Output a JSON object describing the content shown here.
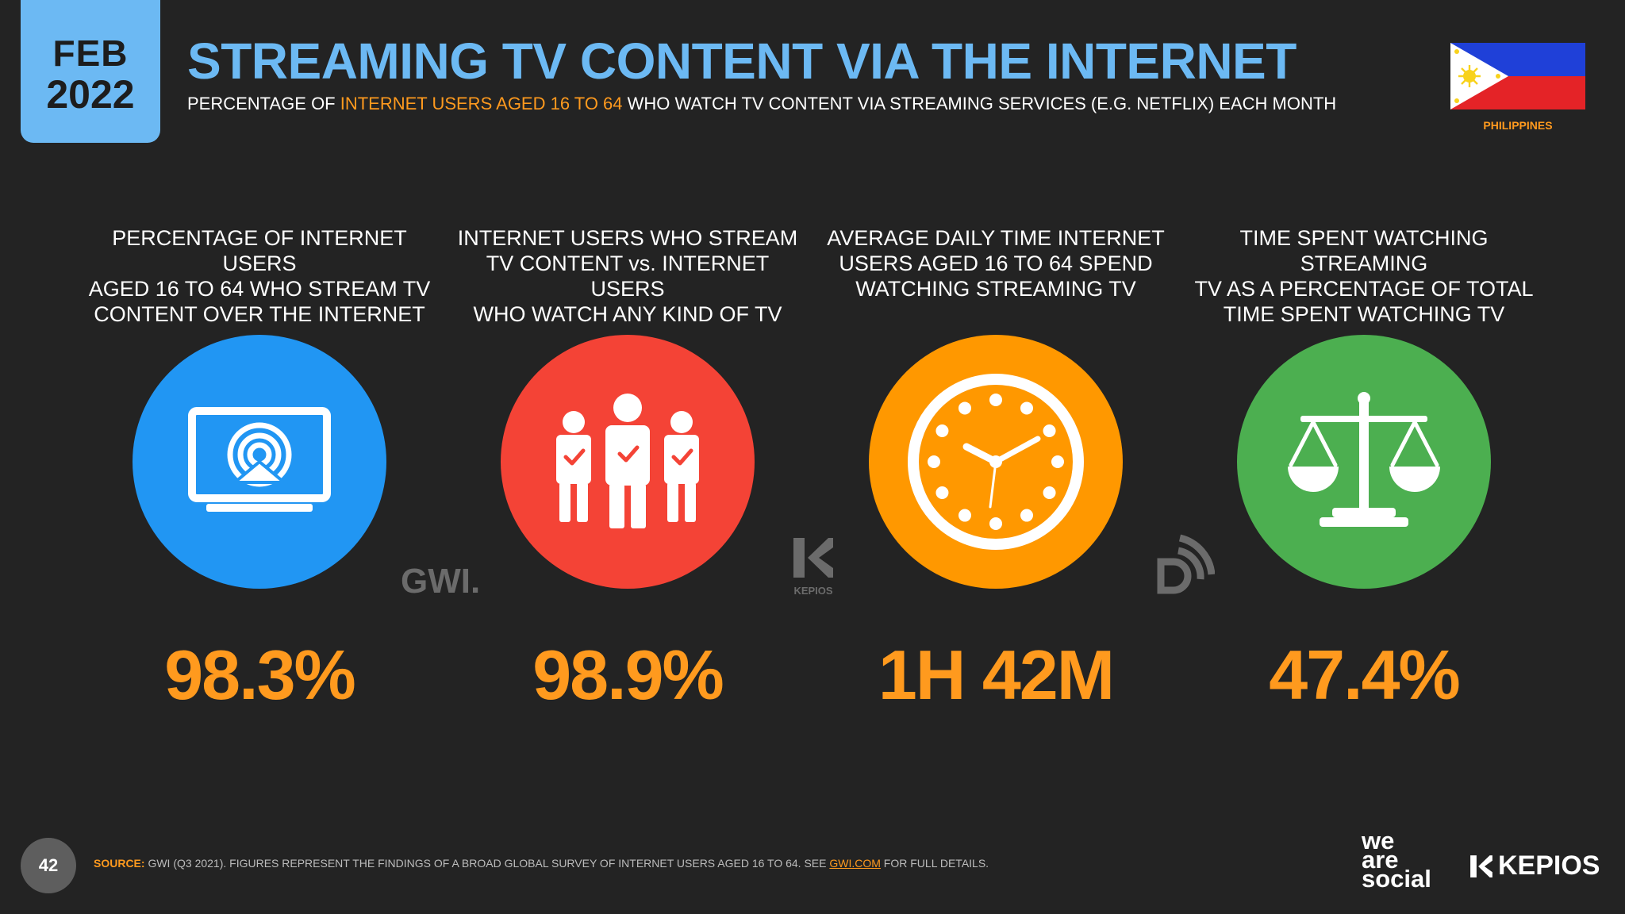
{
  "header": {
    "date_month": "FEB",
    "date_year": "2022",
    "title": "STREAMING TV CONTENT VIA THE INTERNET",
    "subtitle_pre": "PERCENTAGE OF ",
    "subtitle_highlight": "INTERNET USERS AGED 16 TO 64",
    "subtitle_post": " WHO WATCH TV CONTENT VIA STREAMING SERVICES (E.G. NETFLIX) EACH MONTH",
    "country": "PHILIPPINES"
  },
  "stats": [
    {
      "label_lines": [
        "PERCENTAGE OF INTERNET USERS",
        "AGED 16 TO 64 WHO STREAM TV",
        "CONTENT OVER THE INTERNET"
      ],
      "value": "98.3%",
      "icon": "streaming-tv-icon",
      "color": "#2196f3"
    },
    {
      "label_lines": [
        "INTERNET USERS WHO STREAM",
        "TV CONTENT vs. INTERNET USERS",
        "WHO WATCH ANY KIND OF TV"
      ],
      "value": "98.9%",
      "icon": "people-check-icon",
      "color": "#f44336"
    },
    {
      "label_lines": [
        "AVERAGE DAILY TIME INTERNET",
        "USERS AGED 16 TO 64 SPEND",
        "WATCHING STREAMING TV"
      ],
      "value": "1H 42M",
      "icon": "clock-icon",
      "color": "#ff9800"
    },
    {
      "label_lines": [
        "TIME SPENT WATCHING STREAMING",
        "TV AS A PERCENTAGE OF TOTAL",
        "TIME SPENT WATCHING TV"
      ],
      "value": "47.4%",
      "icon": "scales-icon",
      "color": "#4caf50"
    }
  ],
  "logos": {
    "gwi": "GWI.",
    "kepios_small": "KEPIOS",
    "we_are_social": [
      "we",
      "are",
      "social"
    ],
    "kepios": "KEPIOS"
  },
  "footer": {
    "page_number": "42",
    "source_label": "SOURCE:",
    "source_text": " GWI (Q3 2021). FIGURES REPRESENT THE FINDINGS OF A BROAD GLOBAL SURVEY OF INTERNET USERS AGED 16 TO 64. SEE ",
    "source_link": "GWI.COM",
    "source_end": " FOR FULL DETAILS."
  },
  "colors": {
    "background": "#232323",
    "title_blue": "#6cb9f3",
    "accent_orange": "#ff9a1e"
  }
}
